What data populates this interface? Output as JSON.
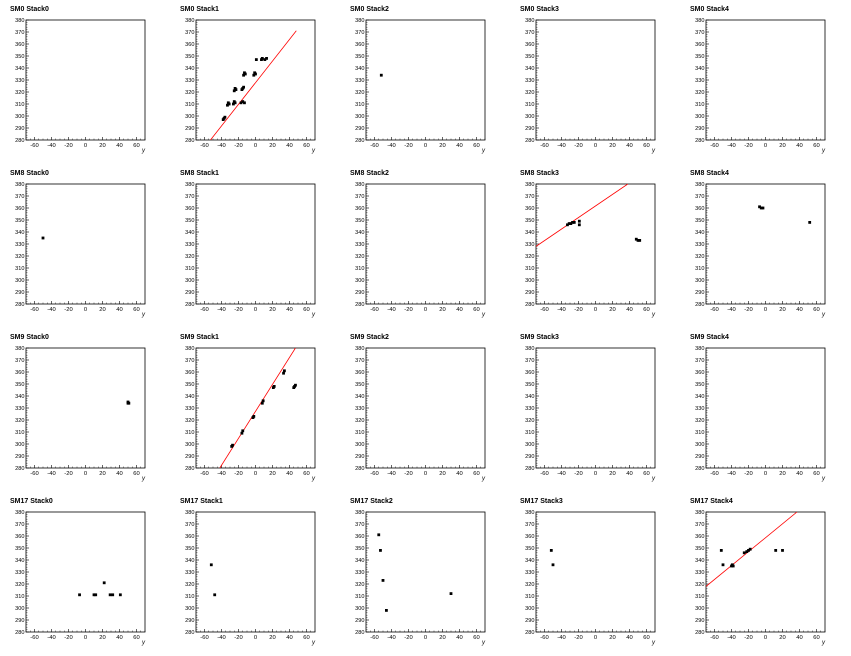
{
  "chart_data": [
    {
      "title": "SM0 Stack0",
      "type": "scatter",
      "xlabel": "y",
      "xlim": [
        -70,
        70
      ],
      "ylim": [
        280,
        380
      ],
      "xticks": [
        -60,
        -40,
        -20,
        0,
        20,
        40,
        60
      ],
      "yticks": [
        280,
        290,
        300,
        310,
        320,
        330,
        340,
        350,
        360,
        370,
        380
      ],
      "points": [],
      "fit_line": null
    },
    {
      "title": "SM0 Stack1",
      "type": "scatter",
      "xlabel": "y",
      "xlim": [
        -70,
        70
      ],
      "ylim": [
        280,
        380
      ],
      "xticks": [
        -60,
        -40,
        -20,
        0,
        20,
        40,
        60
      ],
      "yticks": [
        280,
        290,
        300,
        310,
        320,
        330,
        340,
        350,
        360,
        370,
        380
      ],
      "points": [
        [
          -38,
          297
        ],
        [
          -37,
          298
        ],
        [
          -36,
          299
        ],
        [
          -33,
          309
        ],
        [
          -32,
          311
        ],
        [
          -31,
          310
        ],
        [
          -26,
          310
        ],
        [
          -25,
          312
        ],
        [
          -24,
          311
        ],
        [
          -25,
          321
        ],
        [
          -24,
          323
        ],
        [
          -23,
          322
        ],
        [
          -17,
          311
        ],
        [
          -15,
          312
        ],
        [
          -13,
          311
        ],
        [
          -16,
          322
        ],
        [
          -15,
          323
        ],
        [
          -14,
          324
        ],
        [
          -14,
          334
        ],
        [
          -13,
          336
        ],
        [
          -12,
          335
        ],
        [
          -2,
          334
        ],
        [
          -1,
          336
        ],
        [
          0,
          335
        ],
        [
          1,
          347
        ],
        [
          7,
          347
        ],
        [
          8,
          348
        ],
        [
          11,
          347
        ],
        [
          13,
          348
        ]
      ],
      "fit_line": [
        [
          -53,
          280
        ],
        [
          48,
          371
        ]
      ]
    },
    {
      "title": "SM0 Stack2",
      "type": "scatter",
      "xlabel": "y",
      "xlim": [
        -70,
        70
      ],
      "ylim": [
        280,
        380
      ],
      "xticks": [
        -60,
        -40,
        -20,
        0,
        20,
        40,
        60
      ],
      "yticks": [
        280,
        290,
        300,
        310,
        320,
        330,
        340,
        350,
        360,
        370,
        380
      ],
      "points": [
        [
          -52,
          334
        ]
      ],
      "fit_line": null
    },
    {
      "title": "SM0 Stack3",
      "type": "scatter",
      "xlabel": "y",
      "xlim": [
        -70,
        70
      ],
      "ylim": [
        280,
        380
      ],
      "xticks": [
        -60,
        -40,
        -20,
        0,
        20,
        40,
        60
      ],
      "yticks": [
        280,
        290,
        300,
        310,
        320,
        330,
        340,
        350,
        360,
        370,
        380
      ],
      "points": [],
      "fit_line": null
    },
    {
      "title": "SM0 Stack4",
      "type": "scatter",
      "xlabel": "y",
      "xlim": [
        -70,
        70
      ],
      "ylim": [
        280,
        380
      ],
      "xticks": [
        -60,
        -40,
        -20,
        0,
        20,
        40,
        60
      ],
      "yticks": [
        280,
        290,
        300,
        310,
        320,
        330,
        340,
        350,
        360,
        370,
        380
      ],
      "points": [],
      "fit_line": null
    },
    {
      "title": "SM8 Stack0",
      "type": "scatter",
      "xlabel": "y",
      "xlim": [
        -70,
        70
      ],
      "ylim": [
        280,
        380
      ],
      "xticks": [
        -60,
        -40,
        -20,
        0,
        20,
        40,
        60
      ],
      "yticks": [
        280,
        290,
        300,
        310,
        320,
        330,
        340,
        350,
        360,
        370,
        380
      ],
      "points": [
        [
          -50,
          335
        ]
      ],
      "fit_line": null
    },
    {
      "title": "SM8 Stack1",
      "type": "scatter",
      "xlabel": "y",
      "xlim": [
        -70,
        70
      ],
      "ylim": [
        280,
        380
      ],
      "xticks": [
        -60,
        -40,
        -20,
        0,
        20,
        40,
        60
      ],
      "yticks": [
        280,
        290,
        300,
        310,
        320,
        330,
        340,
        350,
        360,
        370,
        380
      ],
      "points": [],
      "fit_line": null
    },
    {
      "title": "SM8 Stack2",
      "type": "scatter",
      "xlabel": "y",
      "xlim": [
        -70,
        70
      ],
      "ylim": [
        280,
        380
      ],
      "xticks": [
        -60,
        -40,
        -20,
        0,
        20,
        40,
        60
      ],
      "yticks": [
        280,
        290,
        300,
        310,
        320,
        330,
        340,
        350,
        360,
        370,
        380
      ],
      "points": [],
      "fit_line": null
    },
    {
      "title": "SM8 Stack3",
      "type": "scatter",
      "xlabel": "y",
      "xlim": [
        -70,
        70
      ],
      "ylim": [
        280,
        380
      ],
      "xticks": [
        -60,
        -40,
        -20,
        0,
        20,
        40,
        60
      ],
      "yticks": [
        280,
        290,
        300,
        310,
        320,
        330,
        340,
        350,
        360,
        370,
        380
      ],
      "points": [
        [
          -33,
          346
        ],
        [
          -31,
          347
        ],
        [
          -29,
          347
        ],
        [
          -27,
          348
        ],
        [
          -25,
          348
        ],
        [
          -19,
          349
        ],
        [
          -19,
          346
        ],
        [
          48,
          334
        ],
        [
          50,
          333
        ],
        [
          52,
          333
        ]
      ],
      "fit_line": [
        [
          -70,
          328
        ],
        [
          38,
          380
        ]
      ]
    },
    {
      "title": "SM8 Stack4",
      "type": "scatter",
      "xlabel": "y",
      "xlim": [
        -70,
        70
      ],
      "ylim": [
        280,
        380
      ],
      "xticks": [
        -60,
        -40,
        -20,
        0,
        20,
        40,
        60
      ],
      "yticks": [
        280,
        290,
        300,
        310,
        320,
        330,
        340,
        350,
        360,
        370,
        380
      ],
      "points": [
        [
          -7,
          361
        ],
        [
          -5,
          360
        ],
        [
          -3,
          360
        ],
        [
          52,
          348
        ]
      ],
      "fit_line": null
    },
    {
      "title": "SM9 Stack0",
      "type": "scatter",
      "xlabel": "y",
      "xlim": [
        -70,
        70
      ],
      "ylim": [
        280,
        380
      ],
      "xticks": [
        -60,
        -40,
        -20,
        0,
        20,
        40,
        60
      ],
      "yticks": [
        280,
        290,
        300,
        310,
        320,
        330,
        340,
        350,
        360,
        370,
        380
      ],
      "points": [
        [
          50,
          335
        ],
        [
          51,
          334
        ],
        [
          50,
          334
        ]
      ],
      "fit_line": null
    },
    {
      "title": "SM9 Stack1",
      "type": "scatter",
      "xlabel": "y",
      "xlim": [
        -70,
        70
      ],
      "ylim": [
        280,
        380
      ],
      "xticks": [
        -60,
        -40,
        -20,
        0,
        20,
        40,
        60
      ],
      "yticks": [
        280,
        290,
        300,
        310,
        320,
        330,
        340,
        350,
        360,
        370,
        380
      ],
      "points": [
        [
          -28,
          298
        ],
        [
          -27,
          299
        ],
        [
          -16,
          309
        ],
        [
          -15,
          311
        ],
        [
          -3,
          322
        ],
        [
          -2,
          323
        ],
        [
          8,
          334
        ],
        [
          9,
          336
        ],
        [
          21,
          347
        ],
        [
          22,
          348
        ],
        [
          33,
          359
        ],
        [
          34,
          361
        ],
        [
          45,
          347
        ],
        [
          46,
          348
        ],
        [
          47,
          349
        ]
      ],
      "fit_line": [
        [
          -42,
          280
        ],
        [
          47,
          380
        ]
      ]
    },
    {
      "title": "SM9 Stack2",
      "type": "scatter",
      "xlabel": "y",
      "xlim": [
        -70,
        70
      ],
      "ylim": [
        280,
        380
      ],
      "xticks": [
        -60,
        -40,
        -20,
        0,
        20,
        40,
        60
      ],
      "yticks": [
        280,
        290,
        300,
        310,
        320,
        330,
        340,
        350,
        360,
        370,
        380
      ],
      "points": [],
      "fit_line": null
    },
    {
      "title": "SM9 Stack3",
      "type": "scatter",
      "xlabel": "y",
      "xlim": [
        -70,
        70
      ],
      "ylim": [
        280,
        380
      ],
      "xticks": [
        -60,
        -40,
        -20,
        0,
        20,
        40,
        60
      ],
      "yticks": [
        280,
        290,
        300,
        310,
        320,
        330,
        340,
        350,
        360,
        370,
        380
      ],
      "points": [],
      "fit_line": null
    },
    {
      "title": "SM9 Stack4",
      "type": "scatter",
      "xlabel": "y",
      "xlim": [
        -70,
        70
      ],
      "ylim": [
        280,
        380
      ],
      "xticks": [
        -60,
        -40,
        -20,
        0,
        20,
        40,
        60
      ],
      "yticks": [
        280,
        290,
        300,
        310,
        320,
        330,
        340,
        350,
        360,
        370,
        380
      ],
      "points": [],
      "fit_line": null
    },
    {
      "title": "SM17 Stack0",
      "type": "scatter",
      "xlabel": "y",
      "xlim": [
        -70,
        70
      ],
      "ylim": [
        280,
        380
      ],
      "xticks": [
        -60,
        -40,
        -20,
        0,
        20,
        40,
        60
      ],
      "yticks": [
        280,
        290,
        300,
        310,
        320,
        330,
        340,
        350,
        360,
        370,
        380
      ],
      "points": [
        [
          -7,
          311
        ],
        [
          10,
          311
        ],
        [
          12,
          311
        ],
        [
          22,
          321
        ],
        [
          29,
          311
        ],
        [
          32,
          311
        ],
        [
          41,
          311
        ]
      ],
      "fit_line": null
    },
    {
      "title": "SM17 Stack1",
      "type": "scatter",
      "xlabel": "y",
      "xlim": [
        -70,
        70
      ],
      "ylim": [
        280,
        380
      ],
      "xticks": [
        -60,
        -40,
        -20,
        0,
        20,
        40,
        60
      ],
      "yticks": [
        280,
        290,
        300,
        310,
        320,
        330,
        340,
        350,
        360,
        370,
        380
      ],
      "points": [
        [
          -52,
          336
        ],
        [
          -48,
          311
        ]
      ],
      "fit_line": null
    },
    {
      "title": "SM17 Stack2",
      "type": "scatter",
      "xlabel": "y",
      "xlim": [
        -70,
        70
      ],
      "ylim": [
        280,
        380
      ],
      "xticks": [
        -60,
        -40,
        -20,
        0,
        20,
        40,
        60
      ],
      "yticks": [
        280,
        290,
        300,
        310,
        320,
        330,
        340,
        350,
        360,
        370,
        380
      ],
      "points": [
        [
          -55,
          361
        ],
        [
          -53,
          348
        ],
        [
          -50,
          323
        ],
        [
          -46,
          298
        ],
        [
          30,
          312
        ]
      ],
      "fit_line": null
    },
    {
      "title": "SM17 Stack3",
      "type": "scatter",
      "xlabel": "y",
      "xlim": [
        -70,
        70
      ],
      "ylim": [
        280,
        380
      ],
      "xticks": [
        -60,
        -40,
        -20,
        0,
        20,
        40,
        60
      ],
      "yticks": [
        280,
        290,
        300,
        310,
        320,
        330,
        340,
        350,
        360,
        370,
        380
      ],
      "points": [
        [
          -52,
          348
        ],
        [
          -50,
          336
        ]
      ],
      "fit_line": null
    },
    {
      "title": "SM17 Stack4",
      "type": "scatter",
      "xlabel": "y",
      "xlim": [
        -70,
        70
      ],
      "ylim": [
        280,
        380
      ],
      "xticks": [
        -60,
        -40,
        -20,
        0,
        20,
        40,
        60
      ],
      "yticks": [
        280,
        290,
        300,
        310,
        320,
        330,
        340,
        350,
        360,
        370,
        380
      ],
      "points": [
        [
          -52,
          348
        ],
        [
          -50,
          336
        ],
        [
          -40,
          335
        ],
        [
          -39,
          336
        ],
        [
          -38,
          335
        ],
        [
          -25,
          346
        ],
        [
          -22,
          347
        ],
        [
          -20,
          348
        ],
        [
          -18,
          349
        ],
        [
          12,
          348
        ],
        [
          20,
          348
        ]
      ],
      "fit_line": [
        [
          -70,
          318
        ],
        [
          37,
          380
        ]
      ]
    }
  ],
  "colors": {
    "points": "#000000",
    "fit_line": "#ff0000",
    "axes": "#000000"
  }
}
